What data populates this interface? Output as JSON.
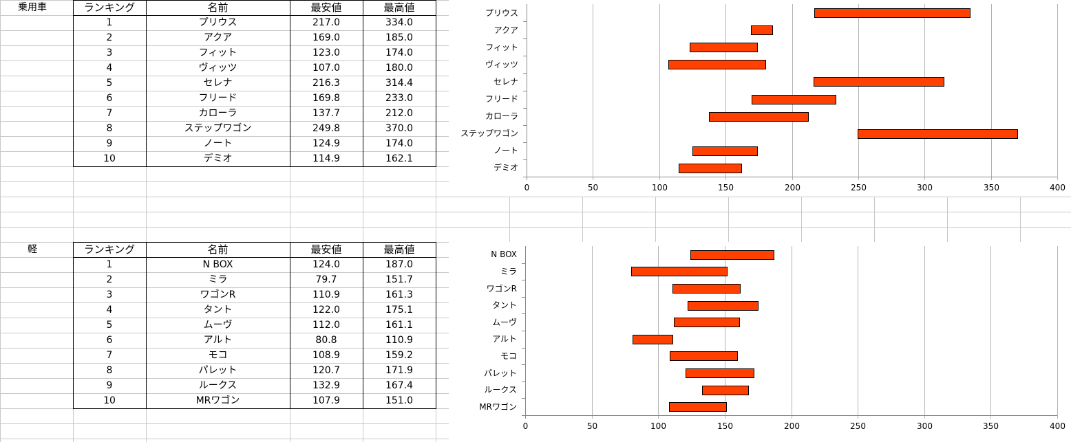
{
  "sections": [
    {
      "category": "乗用車",
      "headers": [
        "ランキング",
        "名前",
        "最安値",
        "最高値"
      ],
      "rows": [
        [
          "1",
          "プリウス",
          "217.0",
          "334.0"
        ],
        [
          "2",
          "アクア",
          "169.0",
          "185.0"
        ],
        [
          "3",
          "フィット",
          "123.0",
          "174.0"
        ],
        [
          "4",
          "ヴィッツ",
          "107.0",
          "180.0"
        ],
        [
          "5",
          "セレナ",
          "216.3",
          "314.4"
        ],
        [
          "6",
          "フリード",
          "169.8",
          "233.0"
        ],
        [
          "7",
          "カローラ",
          "137.7",
          "212.0"
        ],
        [
          "8",
          "ステップワゴン",
          "249.8",
          "370.0"
        ],
        [
          "9",
          "ノート",
          "124.9",
          "174.0"
        ],
        [
          "10",
          "デミオ",
          "114.9",
          "162.1"
        ]
      ]
    },
    {
      "category": "軽",
      "headers": [
        "ランキング",
        "名前",
        "最安値",
        "最高値"
      ],
      "rows": [
        [
          "1",
          "N BOX",
          "124.0",
          "187.0"
        ],
        [
          "2",
          "ミラ",
          "79.7",
          "151.7"
        ],
        [
          "3",
          "ワゴンR",
          "110.9",
          "161.3"
        ],
        [
          "4",
          "タント",
          "122.0",
          "175.1"
        ],
        [
          "5",
          "ムーヴ",
          "112.0",
          "161.1"
        ],
        [
          "6",
          "アルト",
          "80.8",
          "110.9"
        ],
        [
          "7",
          "モコ",
          "108.9",
          "159.2"
        ],
        [
          "8",
          "パレット",
          "120.7",
          "171.9"
        ],
        [
          "9",
          "ルークス",
          "132.9",
          "167.4"
        ],
        [
          "10",
          "MRワゴン",
          "107.9",
          "151.0"
        ]
      ]
    }
  ],
  "chart_data": [
    {
      "type": "bar",
      "orientation": "horizontal-floating",
      "categories": [
        "プリウス",
        "アクア",
        "フィット",
        "ヴィッツ",
        "セレナ",
        "フリード",
        "カローラ",
        "ステップワゴン",
        "ノート",
        "デミオ"
      ],
      "series": [
        {
          "values_min": [
            217.0,
            169.0,
            123.0,
            107.0,
            216.3,
            169.8,
            137.7,
            249.8,
            124.9,
            114.9
          ],
          "values_max": [
            334.0,
            185.0,
            174.0,
            180.0,
            314.4,
            233.0,
            212.0,
            370.0,
            174.0,
            162.1
          ]
        }
      ],
      "xlim": [
        0,
        400
      ],
      "xticks": [
        "0",
        "50",
        "100",
        "150",
        "200",
        "250",
        "300",
        "350",
        "400"
      ],
      "grid": true,
      "bar_color": "#ff4000"
    },
    {
      "type": "bar",
      "orientation": "horizontal-floating",
      "categories": [
        "N BOX",
        "ミラ",
        "ワゴンR",
        "タント",
        "ムーヴ",
        "アルト",
        "モコ",
        "パレット",
        "ルークス",
        "MRワゴン"
      ],
      "series": [
        {
          "values_min": [
            124.0,
            79.7,
            110.9,
            122.0,
            112.0,
            80.8,
            108.9,
            120.7,
            132.9,
            107.9
          ],
          "values_max": [
            187.0,
            151.7,
            161.3,
            175.1,
            161.1,
            110.9,
            159.2,
            171.9,
            167.4,
            151.0
          ]
        }
      ],
      "xlim": [
        0,
        400
      ],
      "xticks": [
        "0",
        "50",
        "100",
        "150",
        "200",
        "250",
        "300",
        "350",
        "400"
      ],
      "grid": true,
      "bar_color": "#ff4000"
    }
  ]
}
